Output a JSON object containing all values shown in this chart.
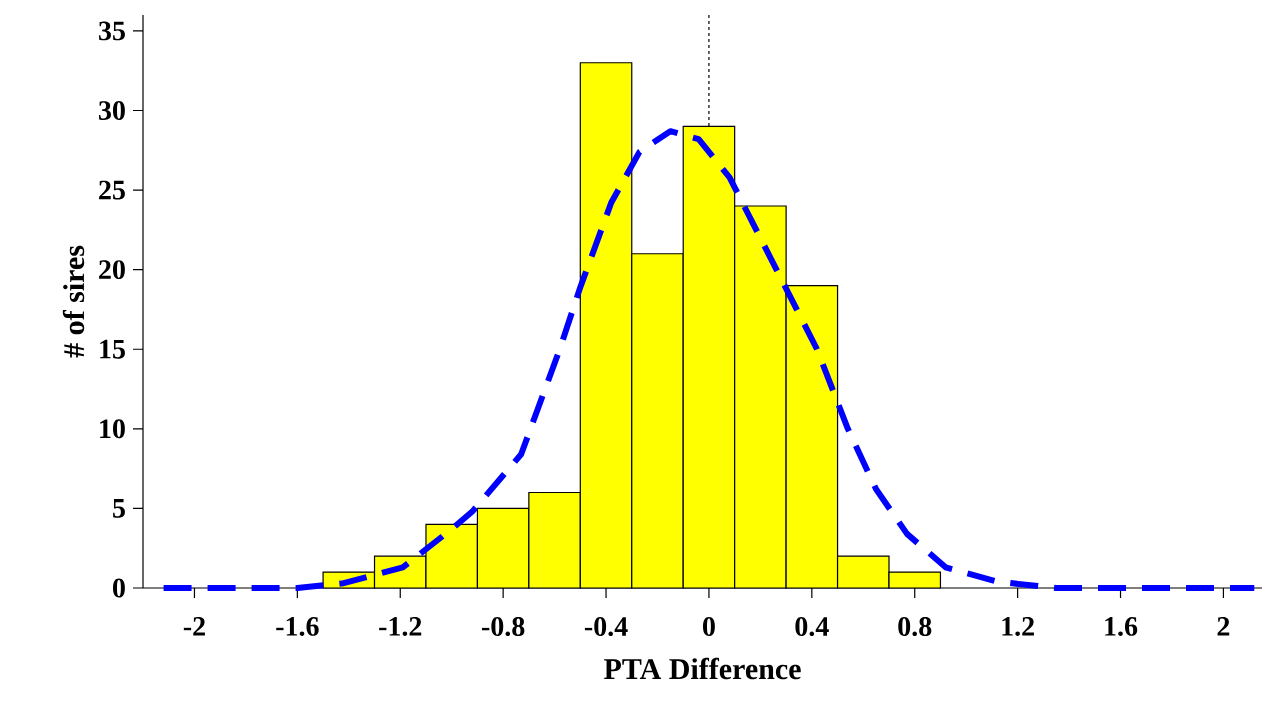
{
  "chart_data": {
    "type": "histogram",
    "xlabel": "PTA Difference",
    "ylabel": "# of sires",
    "bins": [
      -1.5,
      -1.3,
      -1.1,
      -0.9,
      -0.7,
      -0.5,
      -0.3,
      -0.1,
      0.1,
      0.3,
      0.5,
      0.7,
      0.9
    ],
    "values": [
      1,
      2,
      4,
      5,
      6,
      33,
      21,
      29,
      24,
      19,
      2,
      1
    ],
    "color": "#ffff00",
    "series": [
      {
        "type": "line",
        "color": "#0000ff",
        "line_style": "dashed",
        "x": [
          -2.12,
          -1.6,
          -1.42,
          -1.19,
          -1.0,
          -0.92,
          -0.73,
          -0.58,
          -0.5,
          -0.38,
          -0.27,
          -0.15,
          -0.04,
          0.08,
          0.19,
          0.31,
          0.42,
          0.54,
          0.65,
          0.77,
          0.92,
          1.12,
          1.35,
          2.12
        ],
        "values": [
          0,
          0,
          0.3,
          1.3,
          3.7,
          4.8,
          8.4,
          15,
          18.9,
          24.2,
          27.4,
          28.7,
          28.2,
          25.8,
          22.3,
          18.5,
          15,
          10,
          6.2,
          3.4,
          1.3,
          0.4,
          0,
          0
        ]
      }
    ],
    "ref_lines": [
      {
        "axis": "x",
        "value": 0,
        "color": "#000000",
        "line_style": "dotted"
      }
    ],
    "xlim": [
      -2.2,
      2.15
    ],
    "ylim": [
      0,
      36
    ],
    "xticks": [
      -2,
      -1.6,
      -1.2,
      -0.8,
      -0.4,
      0,
      0.4,
      0.8,
      1.2,
      1.6,
      2
    ],
    "yticks": [
      0,
      5,
      10,
      15,
      20,
      25,
      30,
      35
    ]
  }
}
